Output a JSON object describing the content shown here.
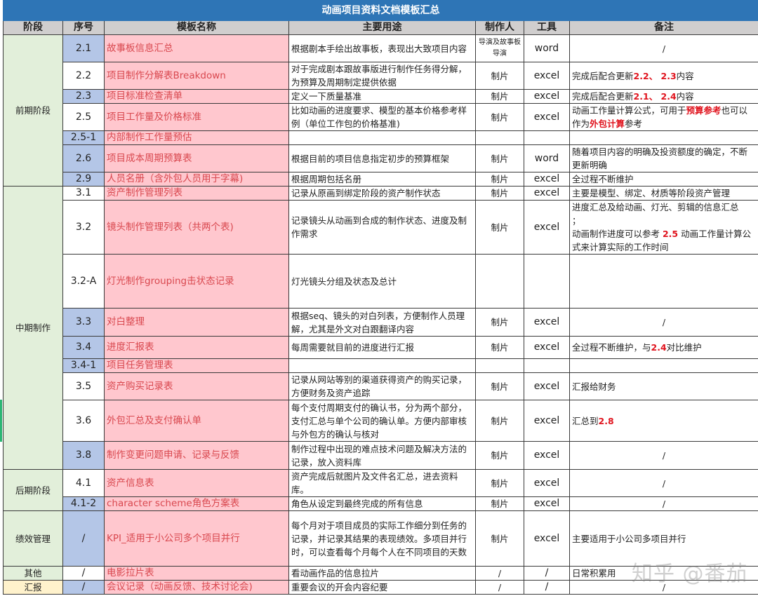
{
  "title": "动画项目资料文档模板汇总",
  "headers": [
    "阶段",
    "序号",
    "模板名称",
    "主要用途",
    "制作人",
    "工具",
    "备注"
  ],
  "colors": {
    "title_bg": "#2e75b6",
    "header_bg": "#d0cece",
    "stage_bg": "#e2efda",
    "seq_blue": "#b4c6e7",
    "name_bg": "#ffc7ce",
    "name_text": "#d9484f",
    "highlight": "#e0141e",
    "report_stage_bg": "#fff2cc"
  },
  "stages": [
    {
      "label": "前期阶段",
      "rows": 7
    },
    {
      "label": "中期制作",
      "rows": 9
    },
    {
      "label": "后期阶段",
      "rows": 2
    },
    {
      "label": "绩效管理",
      "rows": 1
    },
    {
      "label": "其他",
      "rows": 1
    },
    {
      "label": "汇报",
      "rows": 1,
      "highlight": true
    }
  ],
  "rows": [
    {
      "seq": "2.1",
      "seq_blue": true,
      "name": "故事板信息汇总",
      "purpose": "根据剧本手绘出故事板，表现出大致项目内容",
      "maker": "导演及故事板导演",
      "maker_small": true,
      "tool": "word",
      "note": [
        {
          "text": "/"
        }
      ]
    },
    {
      "seq": "2.2",
      "name": "项目制作分解表Breakdown",
      "purpose": "对于完成剧本跟故事版进行制作任务得分解，为预算及周期制定提供依据",
      "maker": "制片",
      "tool": "excel",
      "note": [
        {
          "text": "完成后配合更新"
        },
        {
          "text": "2.2、 2.3",
          "red": true
        },
        {
          "text": "内容"
        }
      ]
    },
    {
      "seq": "2.3",
      "seq_blue": true,
      "name": "项目标准检查清单",
      "purpose": "定义一下质量基准",
      "maker": "制片",
      "tool": "excel",
      "note": [
        {
          "text": "完成后配合更新"
        },
        {
          "text": "2.1、 2.4",
          "red": true
        },
        {
          "text": "内容"
        }
      ]
    },
    {
      "seq": "2.5",
      "name": "项目工作量及价格标准",
      "purpose": "比如动画的进度要求、模型的基本价格参考样例（单位工作包的价格基准)",
      "maker": "制片",
      "tool": "excel",
      "note": [
        {
          "text": "动画工作量计算公式，可用于"
        },
        {
          "text": "预算参考",
          "red": true
        },
        {
          "text": "也可以作为"
        },
        {
          "text": "外包计算",
          "red": true
        },
        {
          "text": "参考"
        }
      ]
    },
    {
      "seq": "2.5-1",
      "seq_blue": true,
      "name": "内部制作工作量预估",
      "purpose": "",
      "maker": "",
      "tool": "",
      "note": []
    },
    {
      "seq": "2.6",
      "seq_blue": true,
      "name": "项目成本周期预算表",
      "purpose": "根据目前的项目信息指定初步的预算框架",
      "maker": "制片",
      "tool": "word",
      "note": [
        {
          "text": "随着项目内容的明确及投资额度的确定，不断更新明确"
        }
      ]
    },
    {
      "seq": "2.9",
      "seq_blue": true,
      "name": "人员名册（含外包人员用于字幕)",
      "purpose": "根据周期包括名册",
      "maker": "制片",
      "tool": "excel",
      "note": [
        {
          "text": "全过程不断维护"
        }
      ]
    },
    {
      "seq": "3.1",
      "name": "资产制作管理列表",
      "purpose": "记录从原画到绑定阶段的资产制作状态",
      "maker": "制片",
      "tool": "excel",
      "note": [
        {
          "text": "主要是模型、绑定、材质等阶段资产管理"
        }
      ]
    },
    {
      "seq": "3.2",
      "name": "镜头制作管理列表（共两个表)",
      "purpose": "记录镜头从动画到合成的制作状态、进度及制作需求",
      "maker": "制片",
      "tool": "excel",
      "note": [
        {
          "text": "进度汇总及给动画、灯光、剪辑的信息汇总\n；\n动画制作进度可以参考 "
        },
        {
          "text": "2.5",
          "red": true
        },
        {
          "text": " 动画工作量计算公式来计算实际的工作时间"
        }
      ]
    },
    {
      "seq": "3.2-A",
      "name": "灯光制作grouping击状态记录",
      "purpose": "灯光镜头分组及状态及总计",
      "maker": "",
      "tool": "",
      "note": []
    },
    {
      "seq": "3.3",
      "seq_blue": true,
      "name": "对白整理",
      "purpose": "根据seq、镜头的对白列表，方便制作人员理解，尤其是外文对白跟翻译内容",
      "maker": "制片",
      "tool": "excel",
      "note": [
        {
          "text": "/"
        }
      ]
    },
    {
      "seq": "3.4",
      "seq_blue": true,
      "name": "进度汇报表",
      "purpose": "每周需要就目前的进度进行汇报",
      "maker": "制片",
      "tool": "excel",
      "note": [
        {
          "text": "全过程不断维护，与"
        },
        {
          "text": "2.4",
          "red": true
        },
        {
          "text": "对比维护"
        }
      ]
    },
    {
      "seq": "3.4-1",
      "seq_blue": true,
      "name": "项目任务管理表",
      "purpose": "",
      "maker": "",
      "tool": "",
      "note": []
    },
    {
      "seq": "3.5",
      "name": "资产购买记录表",
      "purpose": "记录从网站等别的渠道获得资产的购买记录，方便财务及资产追踪",
      "maker": "制片",
      "tool": "excel",
      "note": [
        {
          "text": "汇报给财务"
        }
      ]
    },
    {
      "seq": "3.6",
      "name": "外包汇总及支付确认单",
      "purpose": "每个支付周期支付的确认书，分为两个部分，支付汇总与单个公司的确认单。方便内部审核与外包方的确认与核对",
      "maker": "制片",
      "tool": "excel",
      "note": [
        {
          "text": "汇总到"
        },
        {
          "text": "2.8",
          "red": true
        }
      ]
    },
    {
      "seq": "3.8",
      "seq_blue": true,
      "name": "制作变更问题申请、记录与反馈",
      "purpose": "制作过程中出现的难点技术问题及解决方法的记录，放入资料库",
      "maker": "制片",
      "tool": "excel",
      "note": [
        {
          "text": "/"
        }
      ]
    },
    {
      "seq": "4.1",
      "name": "资产信息表",
      "purpose": "资产完成后就图片及文件名汇总，进去资料库。",
      "maker": "制片",
      "tool": "excel",
      "note": [
        {
          "text": "/"
        }
      ]
    },
    {
      "seq": "4.1-2",
      "seq_blue": true,
      "name": "character scheme角色方案表",
      "purpose": "角色从设定到最终完成的所有信息",
      "maker": "制片",
      "tool": "excel",
      "note": [
        {
          "text": "/"
        }
      ]
    },
    {
      "seq": "/",
      "seq_blue": true,
      "name": "KPI_适用于小公司多个项目并行",
      "purpose": "每个月对于项目成员的实际工作细分到任务的记录，并记录其结果的表现绩效。多项目并行时，可以查看每个月每个人在不同项目的天数",
      "maker": "制片",
      "tool": "excel",
      "note": [
        {
          "text": "主要适用于小公司多项目并行"
        }
      ]
    },
    {
      "seq": "/",
      "name": "电影拉片表",
      "purpose": "看动画作品的信息拉片",
      "maker": "/",
      "tool": "/",
      "note": [
        {
          "text": "日常积累用"
        }
      ]
    },
    {
      "seq": "/",
      "seq_blue": true,
      "name": "会议记录（动画反馈、技术讨论会)",
      "purpose": "重要会议的开会内容纪要",
      "maker": "/",
      "tool": "/",
      "note": [
        {
          "text": "/"
        }
      ]
    }
  ],
  "watermark": "知乎 @番茄"
}
